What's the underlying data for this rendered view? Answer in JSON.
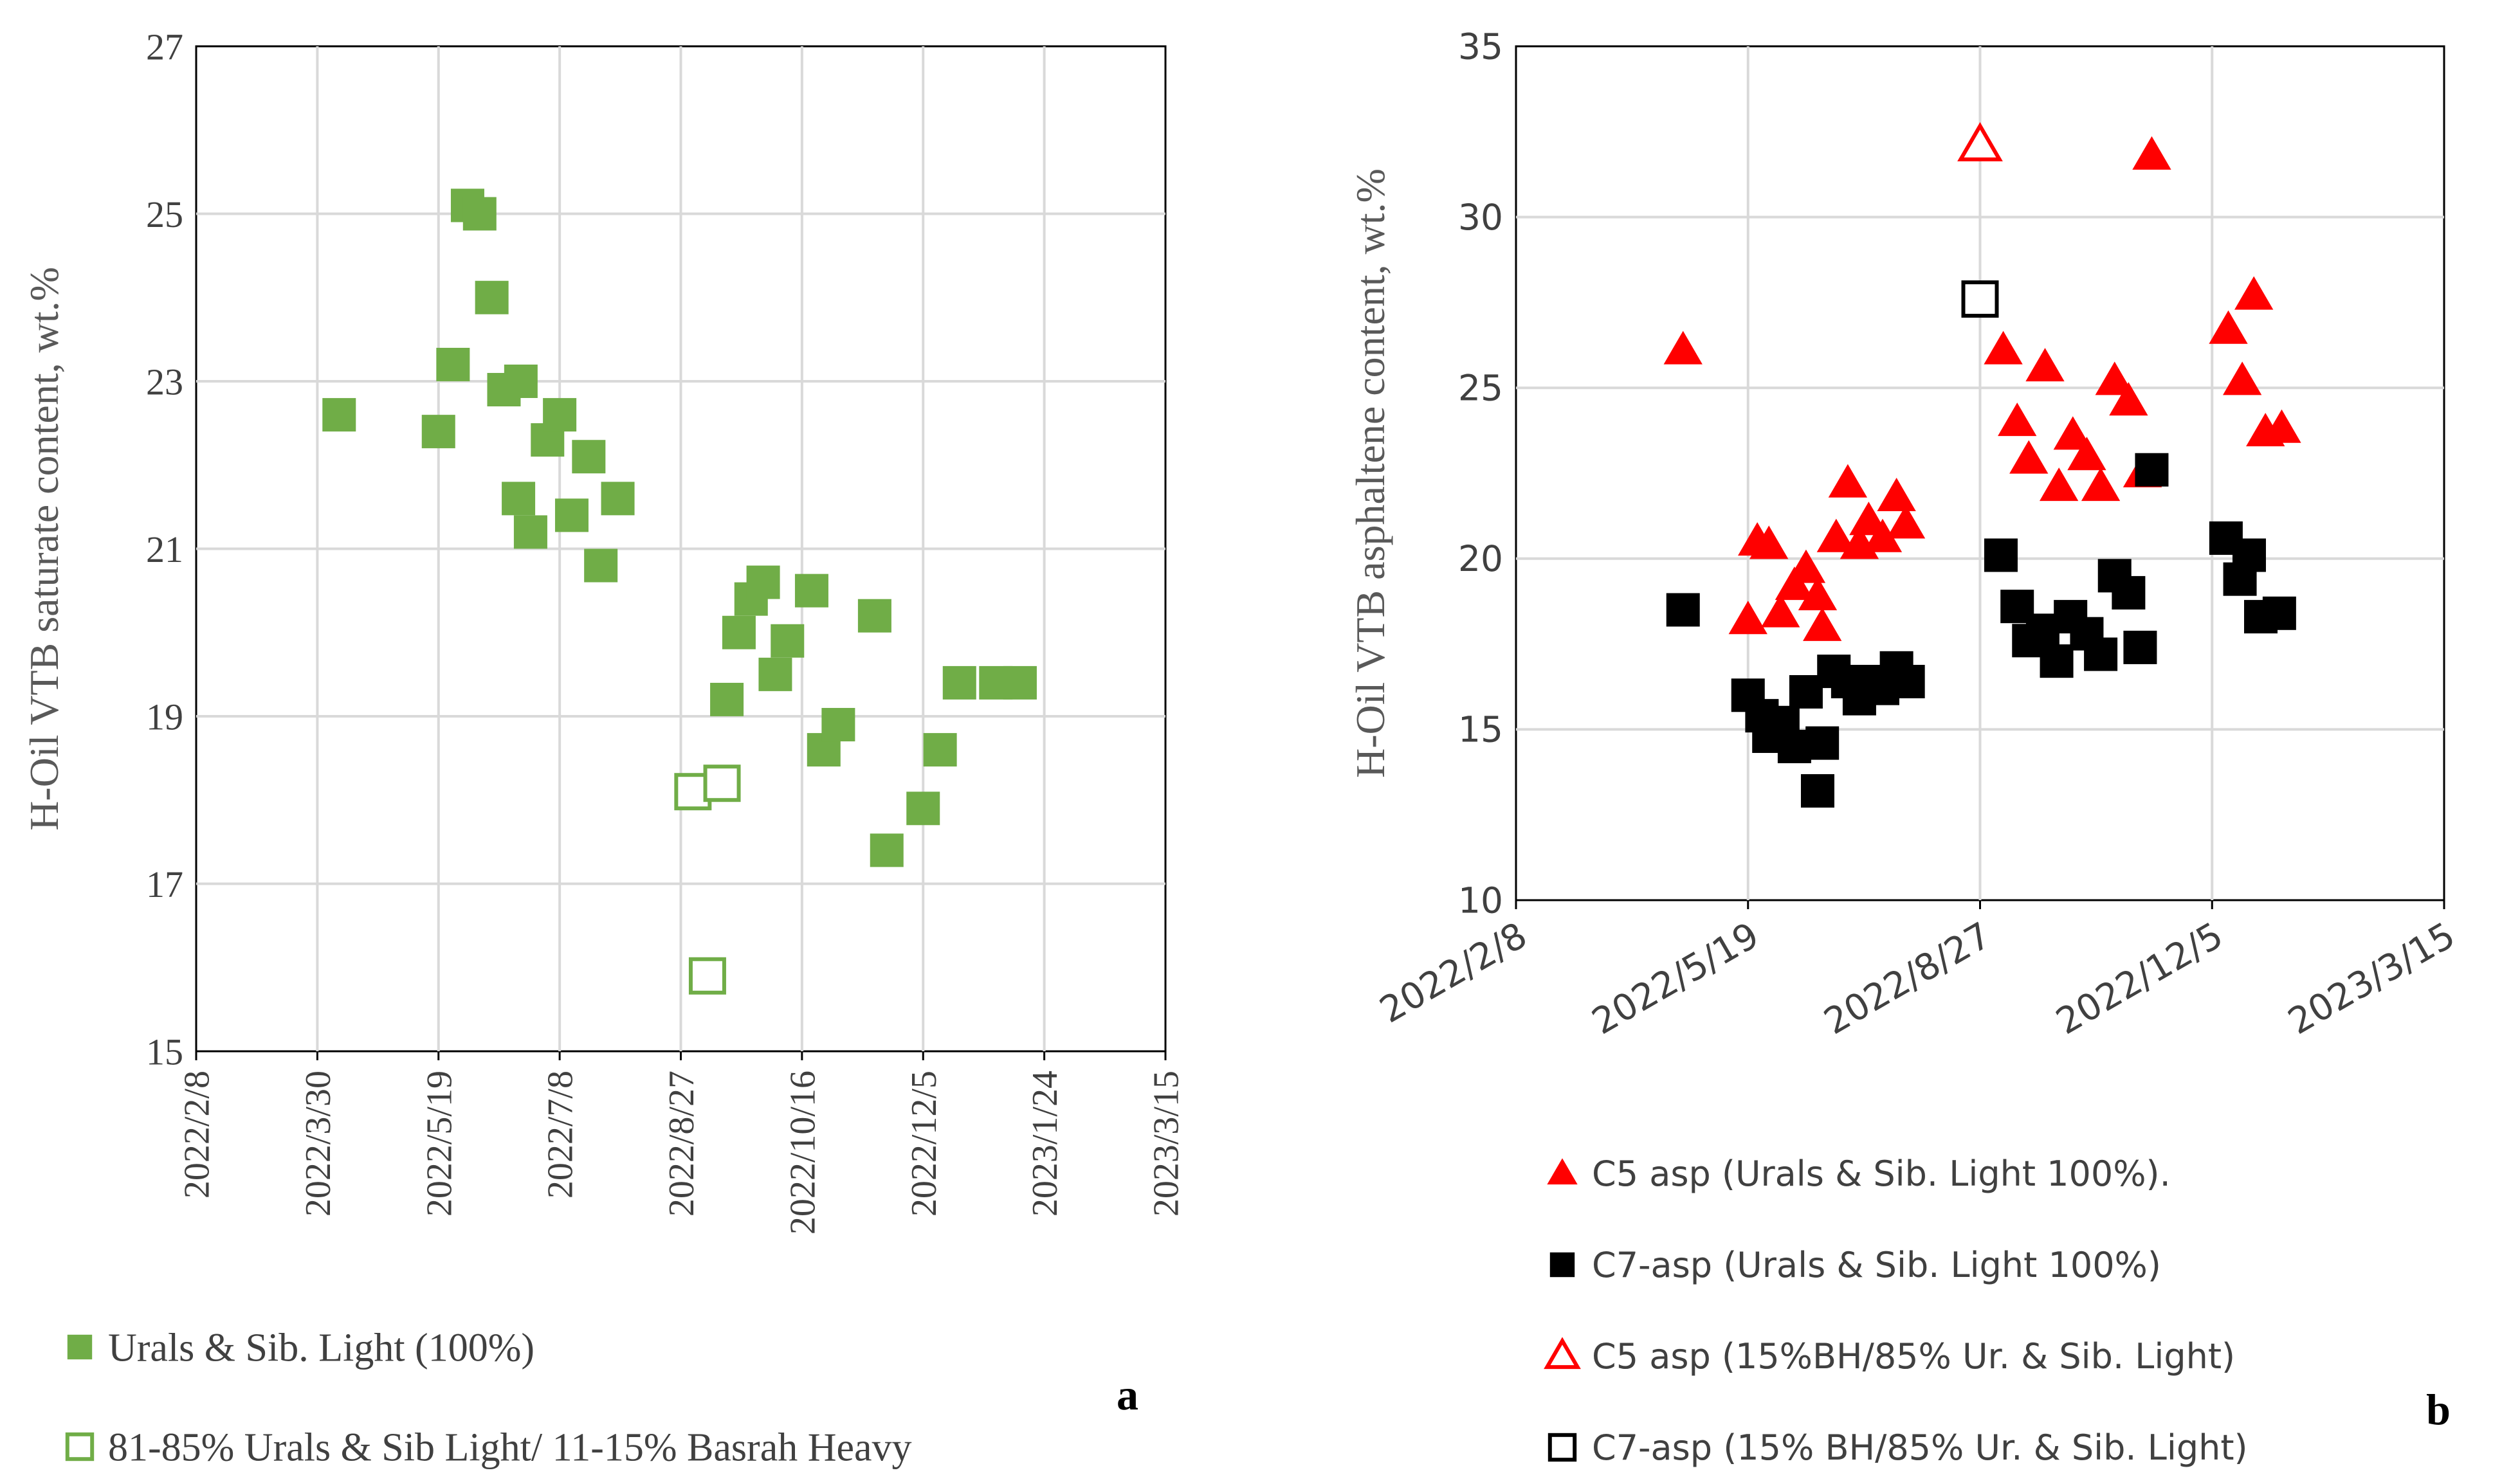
{
  "chart_data": [
    {
      "type": "scatter",
      "panel_label": "a",
      "title": "",
      "xlabel": "",
      "ylabel": "H-Oil VTB saturate content, wt.%",
      "ylim": [
        15,
        27
      ],
      "yticks": [
        15,
        17,
        19,
        21,
        23,
        25,
        27
      ],
      "xlim": [
        "2022-02-08",
        "2023-03-15"
      ],
      "xtick_labels": [
        "2022/2/8",
        "2022/3/30",
        "2022/5/19",
        "2022/7/8",
        "2022/8/27",
        "2022/10/16",
        "2022/12/5",
        "2023/1/24",
        "2023/3/15"
      ],
      "grid": true,
      "legend_position": "bottom",
      "series": [
        {
          "name": "Urals & Sib. Light (100%)",
          "marker": "square-filled",
          "color": "#70AD47",
          "points": [
            [
              "2022-04-08",
              22.6
            ],
            [
              "2022-05-19",
              22.4
            ],
            [
              "2022-05-25",
              23.2
            ],
            [
              "2022-05-31",
              25.1
            ],
            [
              "2022-06-05",
              25.0
            ],
            [
              "2022-06-10",
              24.0
            ],
            [
              "2022-06-15",
              22.9
            ],
            [
              "2022-06-22",
              23.0
            ],
            [
              "2022-06-21",
              21.6
            ],
            [
              "2022-06-26",
              21.2
            ],
            [
              "2022-07-03",
              22.3
            ],
            [
              "2022-07-08",
              22.6
            ],
            [
              "2022-07-13",
              21.4
            ],
            [
              "2022-07-20",
              22.1
            ],
            [
              "2022-07-25",
              20.8
            ],
            [
              "2022-08-01",
              21.6
            ],
            [
              "2022-09-15",
              19.2
            ],
            [
              "2022-09-20",
              20.0
            ],
            [
              "2022-09-25",
              20.4
            ],
            [
              "2022-09-30",
              20.6
            ],
            [
              "2022-10-05",
              19.5
            ],
            [
              "2022-10-10",
              19.9
            ],
            [
              "2022-10-20",
              20.5
            ],
            [
              "2022-10-25",
              18.6
            ],
            [
              "2022-10-31",
              18.9
            ],
            [
              "2022-11-15",
              20.2
            ],
            [
              "2022-11-20",
              17.4
            ],
            [
              "2022-12-05",
              17.9
            ],
            [
              "2022-12-12",
              18.6
            ],
            [
              "2022-12-20",
              19.4
            ],
            [
              "2023-01-04",
              19.4
            ],
            [
              "2023-01-14",
              19.4
            ]
          ]
        },
        {
          "name": "81-85% Urals & Sib Light/ 11-15% Basrah Heavy",
          "marker": "square-open",
          "color": "#70AD47",
          "points": [
            [
              "2022-09-01",
              18.1
            ],
            [
              "2022-09-13",
              18.2
            ],
            [
              "2022-09-07",
              15.9
            ]
          ]
        }
      ]
    },
    {
      "type": "scatter",
      "panel_label": "b",
      "title": "",
      "xlabel": "",
      "ylabel": "H-Oil VTB asphaltene content, wt.%",
      "ylim": [
        10,
        35
      ],
      "yticks": [
        10,
        15,
        20,
        25,
        30,
        35
      ],
      "xlim": [
        "2022-02-08",
        "2023-03-15"
      ],
      "xtick_labels": [
        "2022/2/8",
        "2022/5/19",
        "2022/8/27",
        "2022/12/5",
        "2023/3/15"
      ],
      "grid": true,
      "legend_position": "bottom",
      "series": [
        {
          "name": "C5 asp (Urals & Sib. Light 100%).",
          "marker": "triangle-filled",
          "color": "#FF0000",
          "points": [
            [
              "2022-04-21",
              26.1
            ],
            [
              "2022-05-19",
              18.2
            ],
            [
              "2022-05-23",
              20.5
            ],
            [
              "2022-05-28",
              20.4
            ],
            [
              "2022-06-02",
              18.4
            ],
            [
              "2022-06-08",
              19.2
            ],
            [
              "2022-06-13",
              19.7
            ],
            [
              "2022-06-18",
              18.9
            ],
            [
              "2022-06-20",
              18.0
            ],
            [
              "2022-06-26",
              20.6
            ],
            [
              "2022-07-01",
              22.2
            ],
            [
              "2022-07-06",
              20.4
            ],
            [
              "2022-07-10",
              21.1
            ],
            [
              "2022-07-16",
              20.6
            ],
            [
              "2022-07-22",
              21.8
            ],
            [
              "2022-07-26",
              21.0
            ],
            [
              "2022-09-06",
              26.1
            ],
            [
              "2022-09-12",
              24.0
            ],
            [
              "2022-09-17",
              22.9
            ],
            [
              "2022-09-24",
              25.6
            ],
            [
              "2022-09-30",
              22.1
            ],
            [
              "2022-10-06",
              23.6
            ],
            [
              "2022-10-12",
              23.0
            ],
            [
              "2022-10-18",
              22.1
            ],
            [
              "2022-10-24",
              25.2
            ],
            [
              "2022-10-30",
              24.6
            ],
            [
              "2022-11-05",
              22.5
            ],
            [
              "2022-11-09",
              31.8
            ],
            [
              "2022-12-12",
              26.7
            ],
            [
              "2022-12-18",
              25.2
            ],
            [
              "2022-12-23",
              27.7
            ],
            [
              "2022-12-28",
              23.7
            ],
            [
              "2023-01-04",
              23.8
            ]
          ]
        },
        {
          "name": "C7-asp (Urals & Sib. Light 100%)",
          "marker": "square-filled",
          "color": "#000000",
          "points": [
            [
              "2022-04-21",
              18.5
            ],
            [
              "2022-05-19",
              16.0
            ],
            [
              "2022-05-25",
              15.4
            ],
            [
              "2022-05-28",
              14.8
            ],
            [
              "2022-06-03",
              15.2
            ],
            [
              "2022-06-08",
              14.5
            ],
            [
              "2022-06-13",
              16.1
            ],
            [
              "2022-06-18",
              13.2
            ],
            [
              "2022-06-20",
              14.6
            ],
            [
              "2022-06-25",
              16.7
            ],
            [
              "2022-07-01",
              16.4
            ],
            [
              "2022-07-06",
              15.9
            ],
            [
              "2022-07-10",
              16.4
            ],
            [
              "2022-07-16",
              16.2
            ],
            [
              "2022-07-22",
              16.8
            ],
            [
              "2022-07-27",
              16.4
            ],
            [
              "2022-09-05",
              20.1
            ],
            [
              "2022-09-12",
              18.6
            ],
            [
              "2022-09-17",
              17.6
            ],
            [
              "2022-09-23",
              17.9
            ],
            [
              "2022-09-29",
              17.0
            ],
            [
              "2022-10-05",
              18.3
            ],
            [
              "2022-10-12",
              17.8
            ],
            [
              "2022-10-18",
              17.2
            ],
            [
              "2022-10-24",
              19.5
            ],
            [
              "2022-10-30",
              19.0
            ],
            [
              "2022-11-04",
              17.4
            ],
            [
              "2022-11-09",
              22.6
            ],
            [
              "2022-12-11",
              20.6
            ],
            [
              "2022-12-17",
              19.4
            ],
            [
              "2022-12-21",
              20.1
            ],
            [
              "2022-12-26",
              18.3
            ],
            [
              "2023-01-03",
              18.4
            ]
          ]
        },
        {
          "name": "C5 asp (15%BH/85% Ur. & Sib. Light)",
          "marker": "triangle-open",
          "color": "#FF0000",
          "points": [
            [
              "2022-08-27",
              32.1
            ]
          ]
        },
        {
          "name": "C7-asp (15% BH/85% Ur. & Sib. Light)",
          "marker": "square-open",
          "color": "#000000",
          "points": [
            [
              "2022-08-27",
              27.6
            ]
          ]
        }
      ]
    }
  ]
}
